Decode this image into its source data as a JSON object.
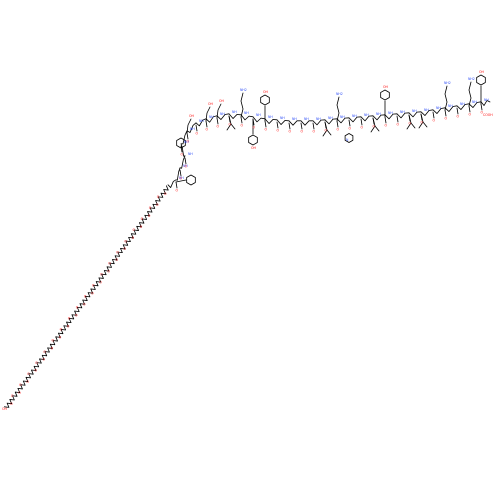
{
  "colors": {
    "bond": "#000000",
    "oxygen": "#ff0d0d",
    "nitrogen": "#3050f8"
  },
  "atom_labels": {
    "oxygen": "O",
    "nitrogen": "N",
    "hydroxyl": "OH",
    "amine": "NH",
    "amine2": "NH2",
    "acid": "COOH"
  }
}
